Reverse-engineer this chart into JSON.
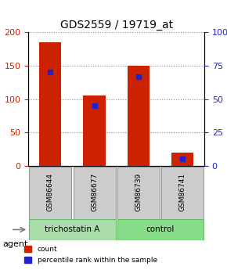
{
  "title": "GDS2559 / 19719_at",
  "samples": [
    "GSM86644",
    "GSM86677",
    "GSM86739",
    "GSM86741"
  ],
  "counts": [
    185,
    105,
    150,
    20
  ],
  "percentile_ranks": [
    70,
    45,
    67,
    5
  ],
  "ylim_left": [
    0,
    200
  ],
  "ylim_right": [
    0,
    100
  ],
  "yticks_left": [
    0,
    50,
    100,
    150,
    200
  ],
  "yticks_right": [
    0,
    25,
    50,
    75,
    100
  ],
  "ytick_labels_right": [
    "0",
    "25",
    "50",
    "75",
    "100%"
  ],
  "bar_color": "#cc2200",
  "percentile_color": "#2222cc",
  "groups": [
    {
      "label": "trichostatin A",
      "samples": [
        0,
        1
      ],
      "color": "#aaddaa"
    },
    {
      "label": "control",
      "samples": [
        2,
        3
      ],
      "color": "#88dd88"
    }
  ],
  "agent_label": "agent",
  "legend_count_label": "count",
  "legend_percentile_label": "percentile rank within the sample",
  "grid_color": "#888888",
  "bar_width": 0.4,
  "sample_box_color": "#cccccc"
}
